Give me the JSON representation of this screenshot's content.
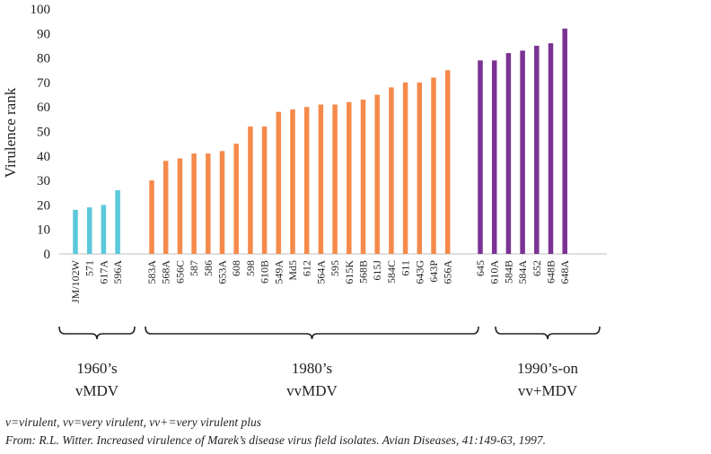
{
  "chart_data": {
    "type": "bar",
    "ylabel": "Virulence rank",
    "ylim": [
      0,
      100
    ],
    "yticks": [
      0,
      10,
      20,
      30,
      40,
      50,
      60,
      70,
      80,
      90,
      100
    ],
    "grid": false,
    "groups": [
      {
        "label_line1": "1960’s",
        "label_line2": "vMDV",
        "color": "#5BC8DB",
        "categories": [
          "JM/102W",
          "571",
          "617A",
          "596A"
        ],
        "values": [
          18,
          19,
          20,
          26
        ]
      },
      {
        "label_line1": "1980’s",
        "label_line2": "vvMDV",
        "color": "#F58A4B",
        "categories": [
          "583A",
          "568A",
          "656C",
          "587",
          "586",
          "653A",
          "608",
          "598",
          "610B",
          "549A",
          "Md5",
          "612",
          "564A",
          "595",
          "615K",
          "568B",
          "615J",
          "584C",
          "611",
          "643G",
          "643P",
          "656A"
        ],
        "values": [
          30,
          38,
          39,
          41,
          41,
          42,
          45,
          52,
          52,
          58,
          59,
          60,
          61,
          61,
          62,
          63,
          65,
          68,
          70,
          70,
          72,
          75
        ]
      },
      {
        "label_line1": "1990’s-on",
        "label_line2": "vv+MDV",
        "color": "#7B3294",
        "categories": [
          "645",
          "610A",
          "584B",
          "584A",
          "652",
          "648B",
          "648A"
        ],
        "values": [
          79,
          79,
          82,
          83,
          85,
          86,
          92
        ]
      }
    ]
  },
  "footnotes": {
    "definitions": "v=virulent, vv=very virulent, vv+=very virulent plus",
    "source": "From: R.L. Witter. Increased virulence of Marek’s disease virus field isolates. Avian Diseases, 41:149-63, 1997."
  }
}
